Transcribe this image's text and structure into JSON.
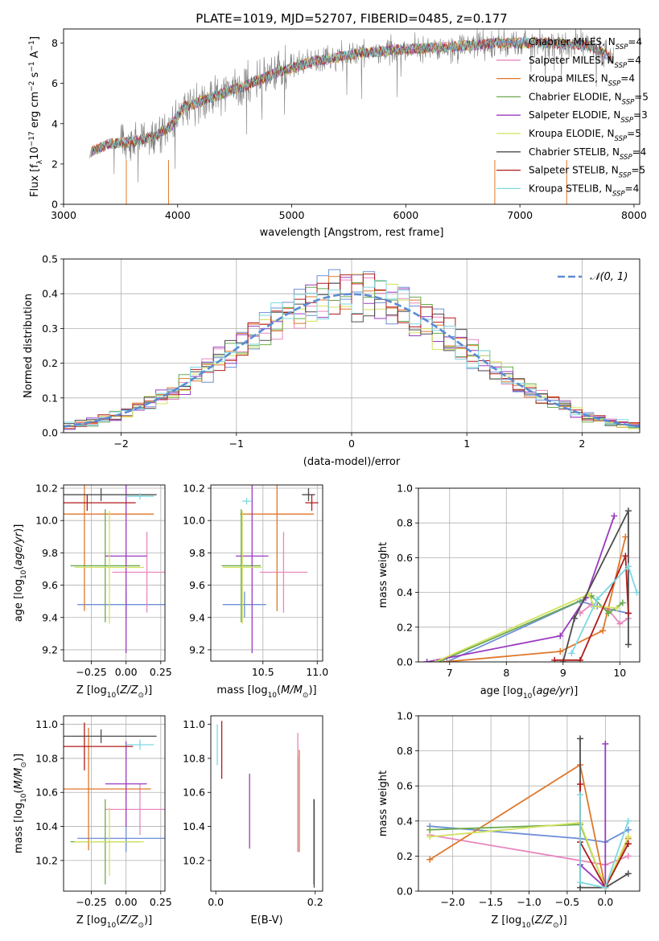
{
  "palette": {
    "chabrier_miles": "#6e8fd6",
    "salpeter_miles": "#e887bd",
    "kroupa_miles": "#e0772a",
    "chabrier_elodie": "#6aaa4e",
    "salpeter_elodie": "#9a3bc0",
    "kroupa_elodie": "#d2e25e",
    "chabrier_stelib": "#4d4d4d",
    "salpeter_stelib": "#b01a1a",
    "kroupa_stelib": "#7dd8e0",
    "data": "#808080",
    "normal": "#5b8bd5",
    "grid": "#b0b0b0"
  },
  "chart_data": [
    {
      "id": "spectrum",
      "type": "line",
      "title": "PLATE=1019, MJD=52707, FIBERID=0485, z=0.177",
      "xlabel": "wavelength [Angstrom, rest frame]",
      "ylabel": "Flux [f_λ10^-17 erg cm^-2 s^-1 A^-1]",
      "xlim": [
        3000,
        8050
      ],
      "ylim": [
        0,
        8.7
      ],
      "xticks": [
        3000,
        4000,
        5000,
        6000,
        7000,
        8000
      ],
      "yticks": [
        0,
        2,
        4,
        6,
        8
      ],
      "legend_position": "top-right",
      "legend": [
        {
          "label": "Chabrier MILES",
          "nssp": "4",
          "color_key": "chabrier_miles"
        },
        {
          "label": "Salpeter MILES",
          "nssp": "4",
          "color_key": "salpeter_miles"
        },
        {
          "label": "Kroupa MILES",
          "nssp": "4",
          "color_key": "kroupa_miles"
        },
        {
          "label": "Chabrier ELODIE",
          "nssp": "5",
          "color_key": "chabrier_elodie"
        },
        {
          "label": "Salpeter ELODIE",
          "nssp": "3",
          "color_key": "salpeter_elodie"
        },
        {
          "label": "Kroupa ELODIE",
          "nssp": "5",
          "color_key": "kroupa_elodie"
        },
        {
          "label": "Chabrier STELIB",
          "nssp": "4",
          "color_key": "chabrier_stelib"
        },
        {
          "label": "Salpeter STELIB",
          "nssp": "5",
          "color_key": "salpeter_stelib"
        },
        {
          "label": "Kroupa STELIB",
          "nssp": "4",
          "color_key": "kroupa_stelib"
        }
      ],
      "continuum_x": [
        3230,
        3400,
        3600,
        3800,
        3950,
        4050,
        4300,
        4600,
        4900,
        5200,
        5600,
        6000,
        6400,
        6800,
        7200,
        7600,
        7800
      ],
      "continuum_y": [
        2.6,
        3.0,
        3.1,
        3.4,
        3.9,
        4.8,
        5.3,
        5.9,
        6.6,
        7.1,
        7.5,
        7.7,
        7.8,
        8.0,
        8.0,
        7.9,
        7.3
      ]
    },
    {
      "id": "residuals",
      "type": "line",
      "xlabel": "(data-model)/error",
      "ylabel": "Normed distribution",
      "xlim": [
        -2.5,
        2.5
      ],
      "ylim": [
        0,
        0.5
      ],
      "xticks": [
        -2,
        -1,
        0,
        1,
        2
      ],
      "yticks": [
        0.0,
        0.1,
        0.2,
        0.3,
        0.4,
        0.5
      ],
      "legend_position": "top-right",
      "legend": [
        {
          "label": "𝒩(0, 1)",
          "color_key": "normal",
          "style": "dashed"
        }
      ],
      "grid": true
    },
    {
      "id": "z_age",
      "type": "scatter",
      "xlabel": "Z [log10(Z/Z⊙)]",
      "ylabel": "age  [log10(age/yr)]",
      "xlim": [
        -0.45,
        0.28
      ],
      "ylim": [
        9.13,
        10.22
      ],
      "xticks": [
        -0.25,
        0.0,
        0.25
      ],
      "yticks": [
        9.2,
        9.4,
        9.6,
        9.8,
        10.0,
        10.2
      ],
      "grid": true,
      "points": [
        {
          "color_key": "chabrier_miles",
          "x": 0.0,
          "y": 9.48,
          "xerr": 0.35,
          "yerr": 0.08
        },
        {
          "color_key": "salpeter_miles",
          "x": 0.15,
          "y": 9.68,
          "xerr": 0.25,
          "yerr": 0.25
        },
        {
          "color_key": "kroupa_miles",
          "x": -0.3,
          "y": 10.04,
          "xerr": 0.5,
          "yerr": 0.6
        },
        {
          "color_key": "chabrier_elodie",
          "x": -0.15,
          "y": 9.72,
          "xerr": 0.25,
          "yerr": 0.35
        },
        {
          "color_key": "salpeter_elodie",
          "x": 0.0,
          "y": 9.78,
          "xerr": 0.15,
          "yerr": 0.6
        },
        {
          "color_key": "kroupa_elodie",
          "x": -0.12,
          "y": 9.71,
          "xerr": 0.25,
          "yerr": 0.35
        },
        {
          "color_key": "chabrier_stelib",
          "x": -0.18,
          "y": 10.16,
          "xerr": 0.4,
          "yerr": 0.04
        },
        {
          "color_key": "salpeter_stelib",
          "x": -0.28,
          "y": 10.11,
          "xerr": 0.35,
          "yerr": 0.05
        },
        {
          "color_key": "kroupa_stelib",
          "x": 0.1,
          "y": 10.15,
          "xerr": 0.1,
          "yerr": 0.02
        }
      ]
    },
    {
      "id": "mass_age",
      "type": "scatter",
      "xlabel": "mass [log10(M/M⊙)]",
      "ylabel": "",
      "xlim": [
        10.02,
        11.05
      ],
      "ylim": [
        9.13,
        10.22
      ],
      "xticks": [
        10.5,
        11.0
      ],
      "yticks": [
        9.2,
        9.4,
        9.6,
        9.8,
        10.0,
        10.2
      ],
      "grid": true,
      "points": [
        {
          "color_key": "chabrier_miles",
          "x": 10.33,
          "y": 9.48,
          "xerr": 0.2,
          "yerr": 0.08
        },
        {
          "color_key": "salpeter_miles",
          "x": 10.69,
          "y": 9.68,
          "xerr": 0.22,
          "yerr": 0.25
        },
        {
          "color_key": "kroupa_miles",
          "x": 10.63,
          "y": 10.04,
          "xerr": 0.34,
          "yerr": 0.6
        },
        {
          "color_key": "chabrier_elodie",
          "x": 10.3,
          "y": 9.72,
          "xerr": 0.18,
          "yerr": 0.35
        },
        {
          "color_key": "salpeter_elodie",
          "x": 10.4,
          "y": 9.78,
          "xerr": 0.15,
          "yerr": 0.6
        },
        {
          "color_key": "kroupa_elodie",
          "x": 10.31,
          "y": 9.71,
          "xerr": 0.18,
          "yerr": 0.35
        },
        {
          "color_key": "chabrier_stelib",
          "x": 10.92,
          "y": 10.16,
          "xerr": 0.06,
          "yerr": 0.04
        },
        {
          "color_key": "salpeter_stelib",
          "x": 10.95,
          "y": 10.11,
          "xerr": 0.06,
          "yerr": 0.05
        },
        {
          "color_key": "kroupa_stelib",
          "x": 10.35,
          "y": 10.12,
          "xerr": 0.04,
          "yerr": 0.02
        }
      ]
    },
    {
      "id": "age_weight",
      "type": "line",
      "xlabel": "age  [log10(age/yr)]",
      "ylabel": "mass weight",
      "xlim": [
        6.45,
        10.35
      ],
      "ylim": [
        0,
        1.0
      ],
      "xticks": [
        7,
        8,
        9,
        10
      ],
      "yticks": [
        0.0,
        0.2,
        0.4,
        0.6,
        0.8,
        1.0
      ],
      "grid": true,
      "series": [
        {
          "color_key": "chabrier_miles",
          "x": [
            6.95,
            9.3,
            9.6,
            10.15
          ],
          "y": [
            0.0,
            0.35,
            0.32,
            0.28
          ]
        },
        {
          "color_key": "salpeter_miles",
          "x": [
            9.3,
            9.5,
            9.8,
            10.0,
            10.15
          ],
          "y": [
            0.28,
            0.33,
            0.3,
            0.22,
            0.25
          ]
        },
        {
          "color_key": "kroupa_miles",
          "x": [
            6.9,
            8.95,
            9.7,
            10.1
          ],
          "y": [
            0.0,
            0.06,
            0.18,
            0.72
          ]
        },
        {
          "color_key": "chabrier_elodie",
          "x": [
            6.8,
            9.5,
            9.8,
            10.05
          ],
          "y": [
            0.0,
            0.38,
            0.28,
            0.34
          ]
        },
        {
          "color_key": "salpeter_elodie",
          "x": [
            6.6,
            8.95,
            9.4,
            9.9
          ],
          "y": [
            0.0,
            0.15,
            0.37,
            0.84
          ]
        },
        {
          "color_key": "kroupa_elodie",
          "x": [
            6.75,
            9.45,
            9.55,
            9.95
          ],
          "y": [
            0.0,
            0.39,
            0.32,
            0.31
          ]
        },
        {
          "color_key": "chabrier_stelib",
          "x": [
            9.0,
            9.2,
            10.15,
            10.15
          ],
          "y": [
            0.0,
            0.25,
            0.87,
            0.1
          ]
        },
        {
          "color_key": "salpeter_stelib",
          "x": [
            8.85,
            9.3,
            10.1,
            10.15
          ],
          "y": [
            0.01,
            0.01,
            0.61,
            0.28
          ]
        },
        {
          "color_key": "kroupa_stelib",
          "x": [
            9.15,
            9.6,
            10.15,
            10.3
          ],
          "y": [
            0.05,
            0.36,
            0.55,
            0.4
          ]
        }
      ]
    },
    {
      "id": "z_mass",
      "type": "scatter",
      "xlabel": "Z [log10(Z/Z⊙)]",
      "ylabel": "mass [log10(M/M⊙)]",
      "xlim": [
        -0.45,
        0.28
      ],
      "ylim": [
        10.02,
        11.05
      ],
      "xticks": [
        -0.25,
        0.0,
        0.25
      ],
      "yticks": [
        10.2,
        10.4,
        10.6,
        10.8,
        11.0
      ],
      "grid": true,
      "points": [
        {
          "color_key": "chabrier_miles",
          "x": 0.0,
          "y": 10.33,
          "xerr": 0.35,
          "yerr": 0.08
        },
        {
          "color_key": "salpeter_miles",
          "x": 0.1,
          "y": 10.5,
          "xerr": 0.25,
          "yerr": 0.15
        },
        {
          "color_key": "kroupa_miles",
          "x": -0.27,
          "y": 10.62,
          "xerr": 0.45,
          "yerr": 0.36
        },
        {
          "color_key": "chabrier_elodie",
          "x": -0.15,
          "y": 10.31,
          "xerr": 0.25,
          "yerr": 0.25
        },
        {
          "color_key": "salpeter_elodie",
          "x": 0.0,
          "y": 10.65,
          "xerr": 0.15,
          "yerr": 0.25
        },
        {
          "color_key": "kroupa_elodie",
          "x": -0.12,
          "y": 10.31,
          "xerr": 0.25,
          "yerr": 0.2
        },
        {
          "color_key": "chabrier_stelib",
          "x": -0.18,
          "y": 10.93,
          "xerr": 0.4,
          "yerr": 0.04
        },
        {
          "color_key": "salpeter_stelib",
          "x": -0.3,
          "y": 10.87,
          "xerr": 0.35,
          "yerr": 0.14
        },
        {
          "color_key": "kroupa_stelib",
          "x": 0.1,
          "y": 10.88,
          "xerr": 0.1,
          "yerr": 0.03
        }
      ]
    },
    {
      "id": "ebv_mass",
      "type": "scatter",
      "xlabel": "E(B-V)",
      "ylabel": "",
      "xlim": [
        -0.01,
        0.215
      ],
      "ylim": [
        10.02,
        11.05
      ],
      "xticks": [
        0.0,
        0.2
      ],
      "yticks": [
        10.2,
        10.4,
        10.6,
        10.8,
        11.0
      ],
      "grid": false,
      "points": [
        {
          "color_key": "chabrier_miles",
          "x": 0.165,
          "y": 10.53,
          "yerr": 0.28
        },
        {
          "color_key": "salpeter_miles",
          "x": 0.165,
          "y": 10.6,
          "yerr": 0.35
        },
        {
          "color_key": "kroupa_miles",
          "x": 0.168,
          "y": 10.55,
          "yerr": 0.3
        },
        {
          "color_key": "chabrier_elodie",
          "x": 0.197,
          "y": 10.31,
          "yerr": 0.25
        },
        {
          "color_key": "salpeter_elodie",
          "x": 0.068,
          "y": 10.49,
          "yerr": 0.22
        },
        {
          "color_key": "kroupa_elodie",
          "x": 0.198,
          "y": 10.31,
          "yerr": 0.22
        },
        {
          "color_key": "chabrier_stelib",
          "x": 0.198,
          "y": 10.3,
          "yerr": 0.26
        },
        {
          "color_key": "salpeter_stelib",
          "x": 0.012,
          "y": 10.85,
          "yerr": 0.17
        },
        {
          "color_key": "kroupa_stelib",
          "x": 0.003,
          "y": 10.88,
          "yerr": 0.12
        }
      ]
    },
    {
      "id": "z_weight",
      "type": "line",
      "xlabel": "Z [log10(Z/Z⊙)]",
      "ylabel": "mass weight",
      "xlim": [
        -2.45,
        0.45
      ],
      "ylim": [
        0,
        1.0
      ],
      "xticks": [
        -2.0,
        -1.5,
        -1.0,
        -0.5,
        0.0
      ],
      "yticks": [
        0.0,
        0.2,
        0.4,
        0.6,
        0.8,
        1.0
      ],
      "grid": true,
      "series": [
        {
          "color_key": "chabrier_miles",
          "x": [
            -2.3,
            -0.33,
            0.0,
            0.3
          ],
          "y": [
            0.37,
            0.3,
            0.28,
            0.35
          ]
        },
        {
          "color_key": "salpeter_miles",
          "x": [
            -2.3,
            0.0,
            0.3
          ],
          "y": [
            0.32,
            0.15,
            0.2
          ]
        },
        {
          "color_key": "kroupa_miles",
          "x": [
            -2.3,
            -0.33,
            0.0,
            0.3
          ],
          "y": [
            0.18,
            0.72,
            0.02,
            0.3
          ]
        },
        {
          "color_key": "chabrier_elodie",
          "x": [
            -2.3,
            -0.33,
            0.0,
            0.3
          ],
          "y": [
            0.35,
            0.38,
            0.02,
            0.27
          ]
        },
        {
          "color_key": "salpeter_elodie",
          "x": [
            -0.33,
            0.0,
            0.0
          ],
          "y": [
            0.15,
            0.02,
            0.84
          ]
        },
        {
          "color_key": "kroupa_elodie",
          "x": [
            -2.3,
            -0.33,
            0.0,
            0.3
          ],
          "y": [
            0.31,
            0.39,
            0.02,
            0.31
          ]
        },
        {
          "color_key": "chabrier_stelib",
          "x": [
            -0.33,
            -0.33,
            0.0,
            0.3
          ],
          "y": [
            0.87,
            0.02,
            0.02,
            0.1
          ]
        },
        {
          "color_key": "salpeter_stelib",
          "x": [
            -0.33,
            -0.33,
            0.0,
            0.3
          ],
          "y": [
            0.61,
            0.28,
            0.02,
            0.27
          ]
        },
        {
          "color_key": "kroupa_stelib",
          "x": [
            -0.33,
            -0.33,
            0.0,
            0.3
          ],
          "y": [
            0.55,
            0.05,
            0.02,
            0.4
          ]
        }
      ]
    }
  ]
}
